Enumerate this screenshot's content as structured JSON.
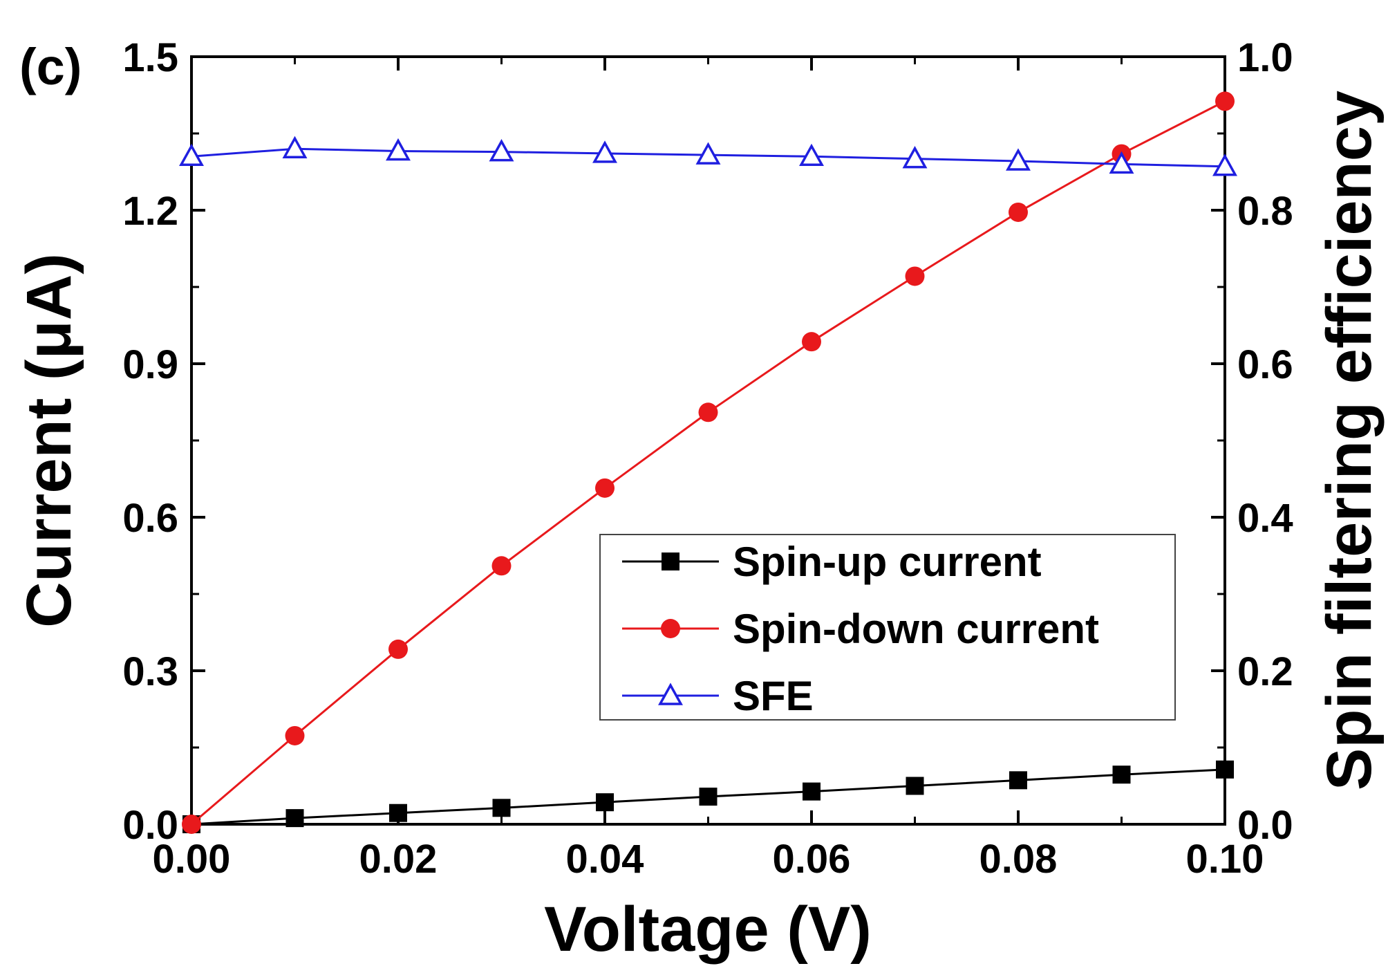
{
  "panel_label": "(c)",
  "chart_data": {
    "type": "line",
    "x": [
      0.0,
      0.01,
      0.02,
      0.03,
      0.04,
      0.05,
      0.06,
      0.07,
      0.08,
      0.09,
      0.1
    ],
    "xlabel": "Voltage (V)",
    "ylabel": "Current (μA)",
    "y2label": "Spin filtering efficiency",
    "xlim": [
      0,
      0.1
    ],
    "ylim": [
      0,
      1.5
    ],
    "y2lim": [
      0,
      1.0
    ],
    "xticks": [
      "0.00",
      "0.02",
      "0.04",
      "0.06",
      "0.08",
      "0.10"
    ],
    "xtick_values": [
      0.0,
      0.02,
      0.04,
      0.06,
      0.08,
      0.1
    ],
    "yticks": [
      "0.0",
      "0.3",
      "0.6",
      "0.9",
      "1.2",
      "1.5"
    ],
    "ytick_values": [
      0.0,
      0.3,
      0.6,
      0.9,
      1.2,
      1.5
    ],
    "y2ticks": [
      "0.0",
      "0.2",
      "0.4",
      "0.6",
      "0.8",
      "1.0"
    ],
    "y2tick_values": [
      0.0,
      0.2,
      0.4,
      0.6,
      0.8,
      1.0
    ],
    "legend_position": "center-right",
    "series": [
      {
        "name": "Spin-up current",
        "axis": "left",
        "marker": "square",
        "color": "#000000",
        "values": [
          0.0,
          0.012,
          0.022,
          0.032,
          0.043,
          0.054,
          0.064,
          0.075,
          0.086,
          0.097,
          0.107
        ]
      },
      {
        "name": "Spin-down current",
        "axis": "left",
        "marker": "circle",
        "color": "#e8191c",
        "values": [
          0.0,
          0.173,
          0.342,
          0.505,
          0.657,
          0.805,
          0.943,
          1.071,
          1.196,
          1.31,
          1.413
        ]
      },
      {
        "name": "SFE",
        "axis": "right",
        "marker": "triangle-open",
        "color": "#1f1fe0",
        "values": [
          0.87,
          0.88,
          0.877,
          0.876,
          0.874,
          0.872,
          0.87,
          0.867,
          0.864,
          0.86,
          0.857
        ]
      }
    ]
  }
}
